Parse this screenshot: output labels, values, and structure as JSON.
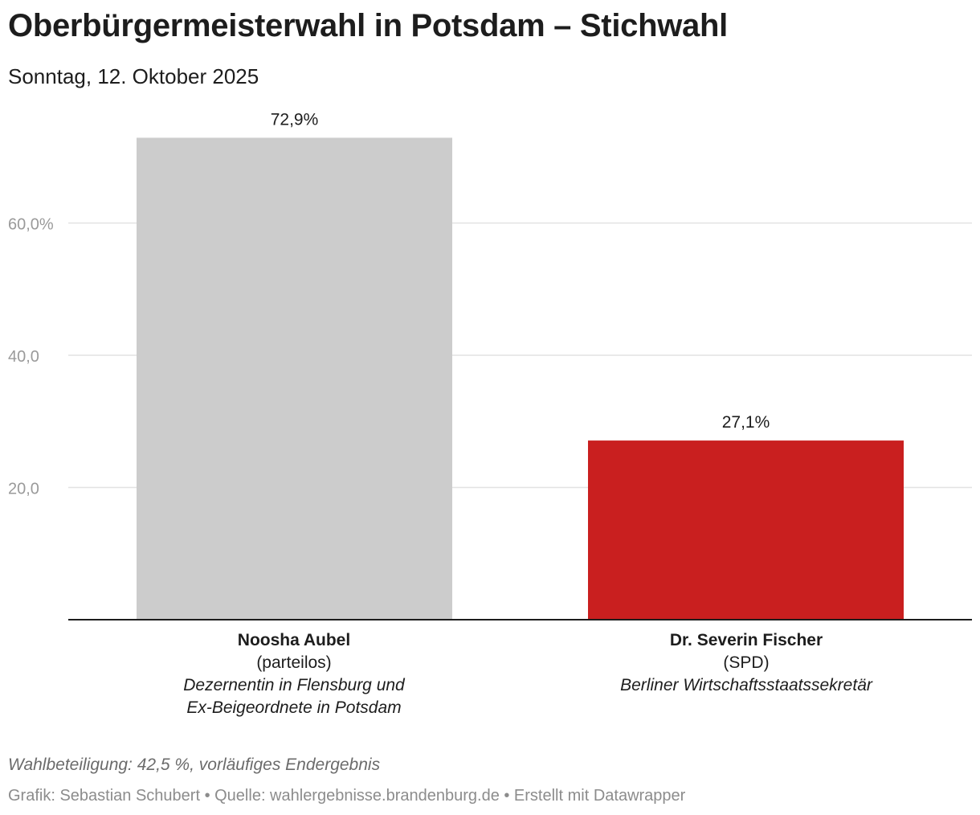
{
  "header": {
    "title": "Oberbürgermeisterwahl in Potsdam – Stichwahl",
    "subtitle": "Sonntag, 12. Oktober 2025"
  },
  "chart_data": {
    "type": "bar",
    "categories": [
      "Noosha Aubel",
      "Dr. Severin Fischer"
    ],
    "values": [
      72.9,
      27.1
    ],
    "value_labels": [
      "72,9%",
      "27,1%"
    ],
    "colors": [
      "#cccccc",
      "#c91f1f"
    ],
    "ylim": [
      0,
      80
    ],
    "yticks": [
      {
        "value": 20,
        "label": "20,0"
      },
      {
        "value": 40,
        "label": "40,0"
      },
      {
        "value": 60,
        "label": "60,0%"
      }
    ],
    "candidates": [
      {
        "name": "Noosha Aubel",
        "party": "(parteilos)",
        "desc1": "Dezernentin in Flensburg und",
        "desc2": "Ex-Beigeordnete in Potsdam"
      },
      {
        "name": "Dr. Severin Fischer",
        "party": "(SPD)",
        "desc1": "Berliner Wirtschaftsstaatssekretär",
        "desc2": ""
      }
    ]
  },
  "footer": {
    "note": "Wahlbeteiligung: 42,5 %, vorläufiges Endergebnis",
    "credit": "Grafik: Sebastian Schubert • Quelle: wahlergebnisse.brandenburg.de • Erstellt mit Datawrapper"
  }
}
